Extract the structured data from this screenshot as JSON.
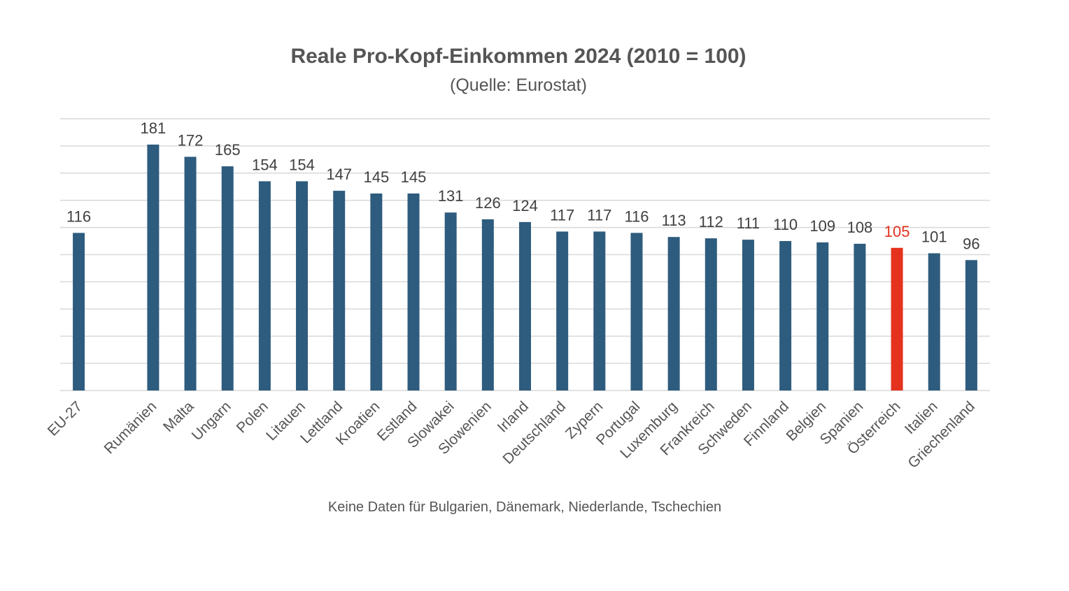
{
  "chart_data": {
    "type": "bar",
    "title": "Reale Pro-Kopf-Einkommen 2024 (2010 = 100)",
    "subtitle": "(Quelle: Eurostat)",
    "note": "Keine Daten für Bulgarien, Dänemark, Niederlande, Tschechien",
    "categories": [
      "EU-27",
      "Rumänien",
      "Malta",
      "Ungarn",
      "Polen",
      "Litauen",
      "Lettland",
      "Kroatien",
      "Estland",
      "Slowakei",
      "Slowenien",
      "Irland",
      "Deutschland",
      "Zypern",
      "Portugal",
      "Luxemburg",
      "Frankreich",
      "Schweden",
      "Finnland",
      "Belgien",
      "Spanien",
      "Österreich",
      "Italien",
      "Griechenland"
    ],
    "values": [
      116,
      181,
      172,
      165,
      154,
      154,
      147,
      145,
      145,
      131,
      126,
      124,
      117,
      117,
      116,
      113,
      112,
      111,
      110,
      109,
      108,
      105,
      101,
      96
    ],
    "highlight": "Österreich",
    "ylim": [
      0,
      200
    ],
    "y_gridline_step": 20,
    "y_tick_labels_shown": false,
    "grid": true,
    "legend": "none",
    "colors": {
      "bar": "#2e5c7e",
      "highlight": "#e4321f",
      "text": "#404040",
      "grid": "#d9d9d9"
    }
  }
}
